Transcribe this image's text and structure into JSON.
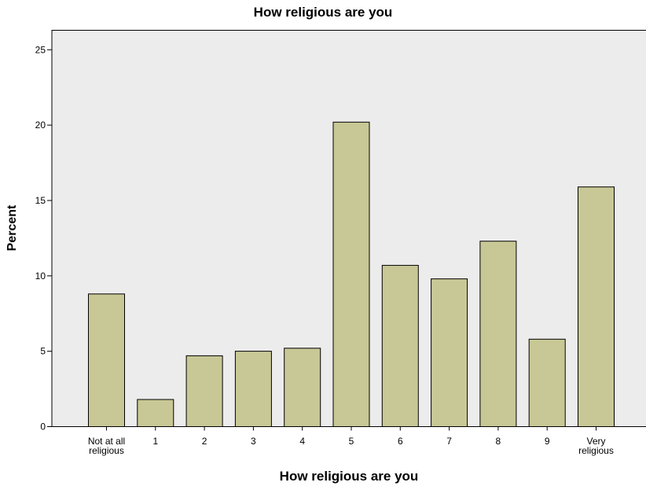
{
  "chart_data": {
    "type": "bar",
    "title": "How religious are you",
    "xlabel": "How religious are you",
    "ylabel": "Percent",
    "categories": [
      [
        "Not at all",
        "religious"
      ],
      [
        "1"
      ],
      [
        "2"
      ],
      [
        "3"
      ],
      [
        "4"
      ],
      [
        "5"
      ],
      [
        "6"
      ],
      [
        "7"
      ],
      [
        "8"
      ],
      [
        "9"
      ],
      [
        "Very",
        "religious"
      ]
    ],
    "values": [
      8.8,
      1.8,
      4.7,
      5.0,
      5.2,
      20.2,
      10.7,
      9.8,
      12.3,
      5.8,
      15.9
    ],
    "ylim": [
      0,
      26
    ],
    "yticks": [
      "0",
      "5",
      "10",
      "15",
      "20",
      "25"
    ],
    "grid": false,
    "bar_color": "#c8c896",
    "plot_background": "#ececec"
  }
}
